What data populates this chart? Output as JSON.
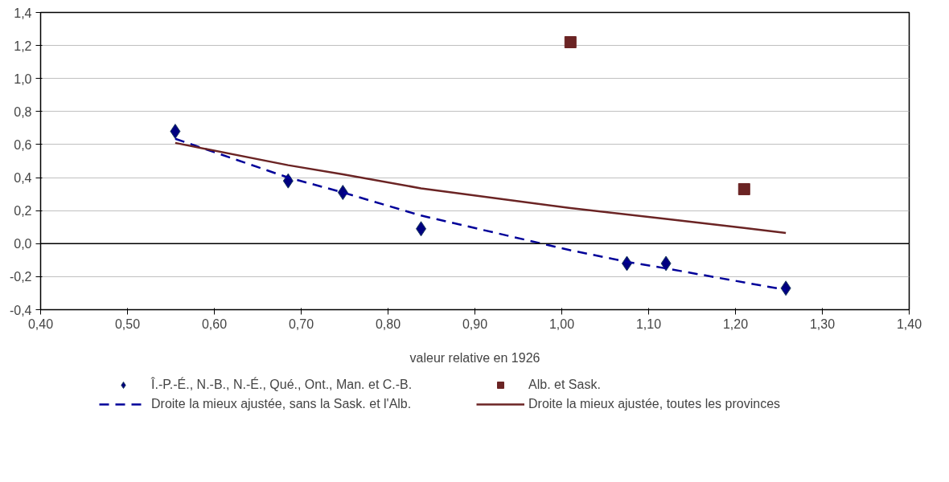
{
  "chart_data": {
    "type": "scatter",
    "xlabel": "valeur relative en 1926",
    "xlim": [
      0.4,
      1.4
    ],
    "ylim": [
      -0.4,
      1.4
    ],
    "xticks": [
      {
        "value": 0.4,
        "label": "0,40"
      },
      {
        "value": 0.5,
        "label": "0,50"
      },
      {
        "value": 0.6,
        "label": "0,60"
      },
      {
        "value": 0.7,
        "label": "0,70"
      },
      {
        "value": 0.8,
        "label": "0,80"
      },
      {
        "value": 0.9,
        "label": "0,90"
      },
      {
        "value": 1.0,
        "label": "1,00"
      },
      {
        "value": 1.1,
        "label": "1,10"
      },
      {
        "value": 1.2,
        "label": "1,20"
      },
      {
        "value": 1.3,
        "label": "1,30"
      },
      {
        "value": 1.4,
        "label": "1,40"
      }
    ],
    "yticks": [
      {
        "value": -0.4,
        "label": "-0,4"
      },
      {
        "value": -0.2,
        "label": "-0,2"
      },
      {
        "value": 0,
        "label": "0,0"
      },
      {
        "value": 0.2,
        "label": "0,2"
      },
      {
        "value": 0.4,
        "label": "0,4"
      },
      {
        "value": 0.6,
        "label": "0,6"
      },
      {
        "value": 0.8,
        "label": "0,8"
      },
      {
        "value": 1.0,
        "label": "1,0"
      },
      {
        "value": 1.2,
        "label": "1,2"
      },
      {
        "value": 1.4,
        "label": "1,4"
      }
    ],
    "grid": "y",
    "legend": "bottom",
    "ref_lines": [
      {
        "axis": "y",
        "value": 0,
        "color": "#000000"
      }
    ],
    "series": [
      {
        "name": "Î.-P.-É., N.-B., N.-É., Qué., Ont., Man. et C.-B.",
        "color": "#000080",
        "marker": "diamond",
        "x": [
          0.555,
          0.685,
          0.748,
          0.838,
          1.075,
          1.12,
          1.258
        ],
        "values": [
          0.68,
          0.38,
          0.31,
          0.09,
          -0.12,
          -0.12,
          -0.27
        ]
      },
      {
        "name": "Alb. et Sask.",
        "color": "#6b2424",
        "marker": "square",
        "x": [
          1.01,
          1.21
        ],
        "values": [
          1.22,
          0.33
        ]
      },
      {
        "name": "Droite la mieux ajustée, sans la Sask. et l'Alb.",
        "type": "line",
        "color": "#000099",
        "line_style": "dashed",
        "x": [
          0.555,
          0.685,
          0.748,
          0.838,
          1.01,
          1.075,
          1.12,
          1.258
        ],
        "values": [
          0.635,
          0.4,
          0.31,
          0.17,
          -0.04,
          -0.11,
          -0.15,
          -0.28
        ]
      },
      {
        "name": "Droite la mieux ajustée, toutes les provinces",
        "type": "line",
        "color": "#6b2424",
        "line_style": "solid",
        "x": [
          0.555,
          0.685,
          0.748,
          0.838,
          1.01,
          1.12,
          1.21,
          1.258
        ],
        "values": [
          0.61,
          0.475,
          0.42,
          0.335,
          0.215,
          0.15,
          0.095,
          0.065
        ]
      }
    ]
  }
}
